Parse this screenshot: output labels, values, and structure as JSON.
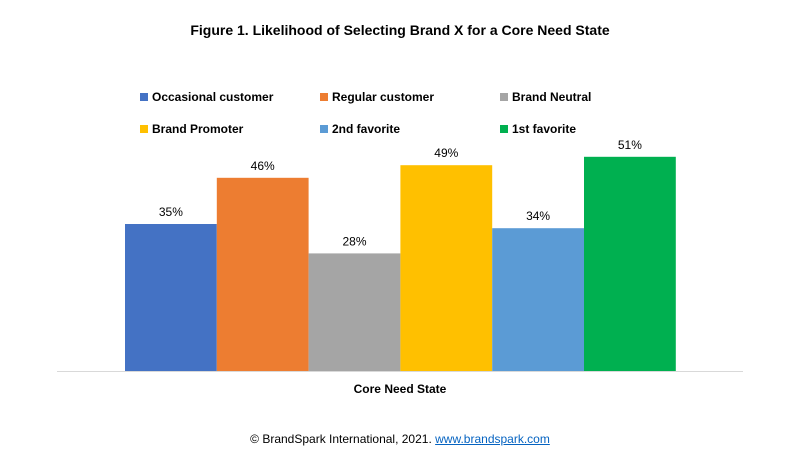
{
  "chart_data": {
    "type": "bar",
    "title": "Figure 1. Likelihood of Selecting Brand X for a Core Need State",
    "xlabel": "Core Need State",
    "ylabel": "",
    "categories": [
      "Core Need State"
    ],
    "ylim": [
      0,
      60
    ],
    "grid": false,
    "legend_position": "top",
    "series": [
      {
        "name": "Occasional customer",
        "values": [
          35
        ],
        "label": "35%",
        "color": "#4472c4"
      },
      {
        "name": "Regular customer",
        "values": [
          46
        ],
        "label": "46%",
        "color": "#ed7d31"
      },
      {
        "name": "Brand Neutral",
        "values": [
          28
        ],
        "label": "28%",
        "color": "#a5a5a5"
      },
      {
        "name": "Brand Promoter",
        "values": [
          49
        ],
        "label": "49%",
        "color": "#ffc000"
      },
      {
        "name": "2nd favorite",
        "values": [
          34
        ],
        "label": "34%",
        "color": "#5b9bd5"
      },
      {
        "name": "1st favorite",
        "values": [
          51
        ],
        "label": "51%",
        "color": "#00b050"
      }
    ]
  },
  "footer": {
    "copyright": "© BrandSpark International, 2021.",
    "link": "www.brandspark.com"
  }
}
